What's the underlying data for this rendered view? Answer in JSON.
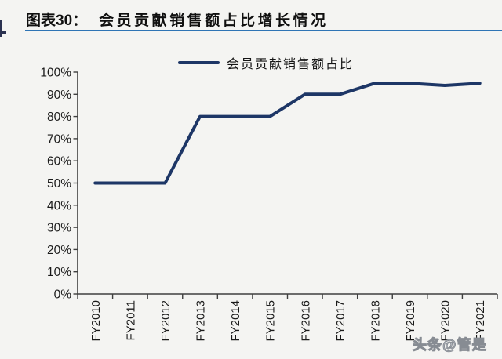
{
  "header": {
    "title_prefix": "图表30：",
    "title_text": "会员贡献销售额占比增长情况"
  },
  "legend": {
    "label": "会员贡献销售额占比"
  },
  "watermark": {
    "text": "头条@管是"
  },
  "colors": {
    "line": "#1d3666",
    "title_underline": "#2e74b5",
    "axis": "#3f3f3f",
    "text": "#1a1a1a",
    "background": "#f4f4f2"
  },
  "chart_data": {
    "type": "line",
    "title": "会员贡献销售额占比增长情况",
    "categories": [
      "FY2010",
      "FY2011",
      "FY2012",
      "FY2013",
      "FY2014",
      "FY2015",
      "FY2016",
      "FY2017",
      "FY2018",
      "FY2019",
      "FY2020",
      "FY2021"
    ],
    "series": [
      {
        "name": "会员贡献销售额占比",
        "values": [
          50,
          50,
          50,
          80,
          80,
          80,
          90,
          90,
          95,
          95,
          94,
          95
        ]
      }
    ],
    "xlabel": "",
    "ylabel": "",
    "y_axis": {
      "min": 0,
      "max": 100,
      "step": 10,
      "suffix": "%"
    },
    "grid": false,
    "legend_position": "top"
  }
}
